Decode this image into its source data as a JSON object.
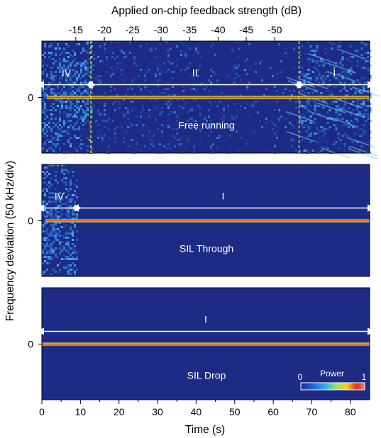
{
  "chart_data": {
    "type": "heatmap",
    "top_axis": {
      "label": "Applied on-chip feedback strength (dB)",
      "ticks": [
        -15,
        -20,
        -25,
        -30,
        -35,
        -40,
        -45,
        -50
      ],
      "tick_labels": [
        "-15",
        "-20",
        "-25",
        "-30",
        "-35",
        "-40",
        "-45",
        "-50"
      ],
      "tick_time_s": [
        8.8,
        16.2,
        23.5,
        30.9,
        38.3,
        45.7,
        53.0,
        60.4
      ]
    },
    "x_axis": {
      "label": "Time (s)",
      "range": [
        0,
        85
      ],
      "ticks": [
        0,
        10,
        20,
        30,
        40,
        50,
        60,
        70,
        80
      ],
      "tick_labels": [
        "0",
        "10",
        "20",
        "30",
        "40",
        "50",
        "60",
        "70",
        "80"
      ]
    },
    "y_axis": {
      "label": "Frequency deviation (50 kHz/div)",
      "tick_label": "0",
      "center_value": 0
    },
    "colorbar": {
      "label": "Power",
      "min": 0,
      "max": 1,
      "min_label": "0",
      "max_label": "1",
      "colormap": [
        "#1e2e8c",
        "#1f5fd6",
        "#26b4e8",
        "#9de06a",
        "#f4d020",
        "#e03018",
        "#f07a70"
      ]
    },
    "panels": [
      {
        "name": "Free running",
        "title": "Free running",
        "regime_boundaries_s": [
          12.7,
          66.7
        ],
        "dashed_lines": true,
        "dashed_color": "#f2e600",
        "regions": [
          {
            "label": "IV",
            "start_s": 0,
            "end_s": 12.7
          },
          {
            "label": "II",
            "start_s": 12.7,
            "end_s": 66.7
          },
          {
            "label": "I",
            "start_s": 66.7,
            "end_s": 85
          }
        ]
      },
      {
        "name": "SIL Through",
        "title": "SIL Through",
        "regime_boundaries_s": [
          9.0
        ],
        "dashed_lines": false,
        "regions": [
          {
            "label": "IV",
            "start_s": 0,
            "end_s": 9.0
          },
          {
            "label": "I",
            "start_s": 9.0,
            "end_s": 85
          }
        ]
      },
      {
        "name": "SIL Drop",
        "title": "SIL Drop",
        "regime_boundaries_s": [],
        "dashed_lines": false,
        "regions": [
          {
            "label": "I",
            "start_s": 0,
            "end_s": 85
          }
        ]
      }
    ],
    "background_color": "#1d2b85"
  }
}
